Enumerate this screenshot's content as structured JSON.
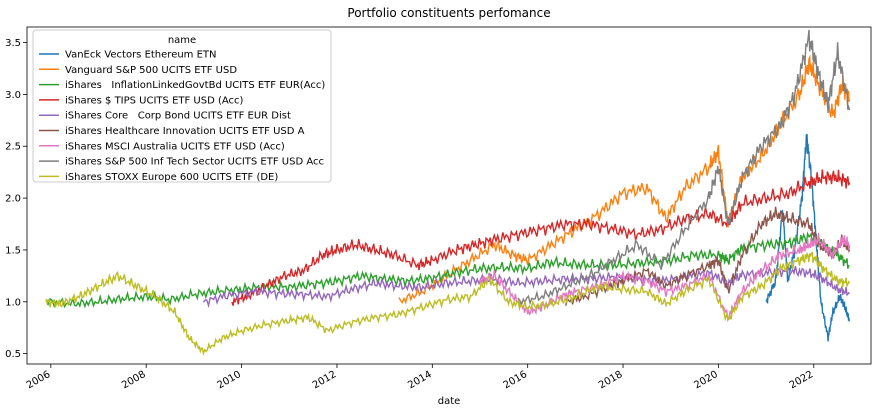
{
  "chart_data": {
    "type": "line",
    "title": "Portfolio constituents perfomance",
    "xlabel": "date",
    "ylabel": "",
    "xlim": [
      2005.5,
      2023.2
    ],
    "ylim": [
      0.4,
      3.65
    ],
    "x_ticks": [
      2006,
      2008,
      2010,
      2012,
      2014,
      2016,
      2018,
      2020,
      2022
    ],
    "y_ticks": [
      0.5,
      1.0,
      1.5,
      2.0,
      2.5,
      3.0,
      3.5
    ],
    "x_tick_labels": [
      "2006",
      "2008",
      "2010",
      "2012",
      "2014",
      "2016",
      "2018",
      "2020",
      "2022"
    ],
    "y_tick_labels": [
      "0.5",
      "1.0",
      "1.5",
      "2.0",
      "2.5",
      "3.0",
      "3.5"
    ],
    "grid": false,
    "legend": {
      "title": "name",
      "placement": "top-left"
    },
    "series": [
      {
        "name": "VanEck Vectors Ethereum ETN",
        "color": "#1f77b4",
        "points": [
          [
            2021.0,
            1.0
          ],
          [
            2021.2,
            1.2
          ],
          [
            2021.35,
            1.9
          ],
          [
            2021.45,
            1.2
          ],
          [
            2021.6,
            1.5
          ],
          [
            2021.75,
            2.0
          ],
          [
            2021.85,
            2.6
          ],
          [
            2021.95,
            2.2
          ],
          [
            2022.05,
            1.6
          ],
          [
            2022.15,
            1.0
          ],
          [
            2022.3,
            0.65
          ],
          [
            2022.4,
            0.9
          ],
          [
            2022.55,
            1.05
          ],
          [
            2022.65,
            0.95
          ],
          [
            2022.75,
            0.82
          ]
        ]
      },
      {
        "name": "Vanguard S&P 500 UCITS ETF USD",
        "color": "#ff7f0e",
        "points": [
          [
            2013.3,
            1.0
          ],
          [
            2013.8,
            1.1
          ],
          [
            2014.3,
            1.25
          ],
          [
            2014.8,
            1.4
          ],
          [
            2015.3,
            1.55
          ],
          [
            2015.7,
            1.45
          ],
          [
            2016.0,
            1.4
          ],
          [
            2016.5,
            1.55
          ],
          [
            2017.0,
            1.7
          ],
          [
            2017.5,
            1.85
          ],
          [
            2018.0,
            2.05
          ],
          [
            2018.5,
            2.1
          ],
          [
            2018.9,
            1.8
          ],
          [
            2019.3,
            2.1
          ],
          [
            2019.8,
            2.3
          ],
          [
            2020.0,
            2.45
          ],
          [
            2020.2,
            1.75
          ],
          [
            2020.5,
            2.2
          ],
          [
            2020.9,
            2.4
          ],
          [
            2021.3,
            2.7
          ],
          [
            2021.7,
            3.0
          ],
          [
            2021.9,
            3.3
          ],
          [
            2022.1,
            3.1
          ],
          [
            2022.4,
            2.8
          ],
          [
            2022.6,
            3.1
          ],
          [
            2022.75,
            2.95
          ]
        ]
      },
      {
        "name": "iShares   InflationLinkedGovtBd UCITS ETF EUR(Acc)",
        "color": "#2ca02c",
        "points": [
          [
            2005.9,
            1.0
          ],
          [
            2006.5,
            0.98
          ],
          [
            2007.0,
            1.0
          ],
          [
            2007.5,
            1.03
          ],
          [
            2008.0,
            1.05
          ],
          [
            2008.5,
            1.02
          ],
          [
            2009.0,
            1.07
          ],
          [
            2009.5,
            1.1
          ],
          [
            2010.0,
            1.12
          ],
          [
            2010.5,
            1.15
          ],
          [
            2011.0,
            1.14
          ],
          [
            2011.5,
            1.17
          ],
          [
            2012.0,
            1.2
          ],
          [
            2012.5,
            1.25
          ],
          [
            2013.0,
            1.22
          ],
          [
            2013.5,
            1.2
          ],
          [
            2014.0,
            1.23
          ],
          [
            2014.5,
            1.28
          ],
          [
            2015.0,
            1.32
          ],
          [
            2015.5,
            1.33
          ],
          [
            2016.0,
            1.32
          ],
          [
            2016.5,
            1.38
          ],
          [
            2017.0,
            1.36
          ],
          [
            2017.5,
            1.35
          ],
          [
            2018.0,
            1.36
          ],
          [
            2018.5,
            1.38
          ],
          [
            2019.0,
            1.4
          ],
          [
            2019.5,
            1.45
          ],
          [
            2020.0,
            1.45
          ],
          [
            2020.2,
            1.4
          ],
          [
            2020.5,
            1.52
          ],
          [
            2021.0,
            1.55
          ],
          [
            2021.5,
            1.57
          ],
          [
            2021.9,
            1.63
          ],
          [
            2022.2,
            1.55
          ],
          [
            2022.5,
            1.45
          ],
          [
            2022.75,
            1.35
          ]
        ]
      },
      {
        "name": "iShares $ TIPS UCITS ETF USD (Acc)",
        "color": "#d62728",
        "points": [
          [
            2009.8,
            1.0
          ],
          [
            2010.1,
            1.05
          ],
          [
            2010.5,
            1.15
          ],
          [
            2010.9,
            1.25
          ],
          [
            2011.3,
            1.3
          ],
          [
            2011.7,
            1.45
          ],
          [
            2012.0,
            1.5
          ],
          [
            2012.4,
            1.55
          ],
          [
            2012.8,
            1.5
          ],
          [
            2013.2,
            1.45
          ],
          [
            2013.7,
            1.35
          ],
          [
            2014.0,
            1.4
          ],
          [
            2014.5,
            1.5
          ],
          [
            2014.9,
            1.55
          ],
          [
            2015.3,
            1.6
          ],
          [
            2015.8,
            1.65
          ],
          [
            2016.3,
            1.7
          ],
          [
            2016.8,
            1.75
          ],
          [
            2017.3,
            1.75
          ],
          [
            2017.8,
            1.7
          ],
          [
            2018.3,
            1.65
          ],
          [
            2018.8,
            1.7
          ],
          [
            2019.3,
            1.8
          ],
          [
            2019.8,
            1.85
          ],
          [
            2020.2,
            1.75
          ],
          [
            2020.5,
            1.95
          ],
          [
            2021.0,
            2.0
          ],
          [
            2021.5,
            2.05
          ],
          [
            2021.9,
            2.15
          ],
          [
            2022.2,
            2.2
          ],
          [
            2022.5,
            2.2
          ],
          [
            2022.75,
            2.15
          ]
        ]
      },
      {
        "name": "iShares Core   Corp Bond UCITS ETF EUR Dist",
        "color": "#9467bd",
        "points": [
          [
            2009.2,
            1.0
          ],
          [
            2009.7,
            1.06
          ],
          [
            2010.3,
            1.1
          ],
          [
            2010.8,
            1.08
          ],
          [
            2011.3,
            1.07
          ],
          [
            2011.8,
            1.05
          ],
          [
            2012.3,
            1.12
          ],
          [
            2012.8,
            1.18
          ],
          [
            2013.3,
            1.15
          ],
          [
            2013.8,
            1.14
          ],
          [
            2014.3,
            1.18
          ],
          [
            2014.8,
            1.2
          ],
          [
            2015.3,
            1.22
          ],
          [
            2015.8,
            1.18
          ],
          [
            2016.3,
            1.2
          ],
          [
            2016.8,
            1.22
          ],
          [
            2017.3,
            1.22
          ],
          [
            2017.8,
            1.24
          ],
          [
            2018.3,
            1.22
          ],
          [
            2018.8,
            1.2
          ],
          [
            2019.3,
            1.24
          ],
          [
            2019.8,
            1.28
          ],
          [
            2020.2,
            1.18
          ],
          [
            2020.5,
            1.26
          ],
          [
            2021.0,
            1.28
          ],
          [
            2021.5,
            1.3
          ],
          [
            2021.9,
            1.28
          ],
          [
            2022.2,
            1.22
          ],
          [
            2022.5,
            1.12
          ],
          [
            2022.75,
            1.08
          ]
        ]
      },
      {
        "name": "iShares Healthcare Innovation UCITS ETF USD A",
        "color": "#8c564b",
        "points": [
          [
            2016.8,
            1.0
          ],
          [
            2017.2,
            1.05
          ],
          [
            2017.7,
            1.15
          ],
          [
            2018.0,
            1.2
          ],
          [
            2018.5,
            1.3
          ],
          [
            2018.9,
            1.15
          ],
          [
            2019.3,
            1.25
          ],
          [
            2019.8,
            1.35
          ],
          [
            2020.0,
            1.4
          ],
          [
            2020.2,
            1.1
          ],
          [
            2020.5,
            1.45
          ],
          [
            2020.9,
            1.75
          ],
          [
            2021.2,
            1.85
          ],
          [
            2021.5,
            1.8
          ],
          [
            2021.9,
            1.75
          ],
          [
            2022.1,
            1.55
          ],
          [
            2022.4,
            1.45
          ],
          [
            2022.6,
            1.6
          ],
          [
            2022.75,
            1.5
          ]
        ]
      },
      {
        "name": "iShares MSCI Australia UCITS ETF USD (Acc)",
        "color": "#e377c2",
        "points": [
          [
            2015.0,
            1.2
          ],
          [
            2015.3,
            1.25
          ],
          [
            2015.7,
            1.05
          ],
          [
            2016.0,
            0.9
          ],
          [
            2016.3,
            0.95
          ],
          [
            2016.7,
            1.05
          ],
          [
            2017.0,
            1.1
          ],
          [
            2017.5,
            1.15
          ],
          [
            2018.0,
            1.25
          ],
          [
            2018.5,
            1.2
          ],
          [
            2018.9,
            1.1
          ],
          [
            2019.3,
            1.15
          ],
          [
            2019.8,
            1.25
          ],
          [
            2020.2,
            0.85
          ],
          [
            2020.5,
            1.1
          ],
          [
            2020.9,
            1.3
          ],
          [
            2021.3,
            1.45
          ],
          [
            2021.7,
            1.5
          ],
          [
            2021.9,
            1.55
          ],
          [
            2022.1,
            1.6
          ],
          [
            2022.4,
            1.45
          ],
          [
            2022.6,
            1.6
          ],
          [
            2022.75,
            1.55
          ]
        ]
      },
      {
        "name": "iShares S&P 500 Inf Tech Sector UCITS ETF USD Acc",
        "color": "#7f7f7f",
        "points": [
          [
            2015.8,
            1.0
          ],
          [
            2016.3,
            1.05
          ],
          [
            2016.8,
            1.15
          ],
          [
            2017.3,
            1.25
          ],
          [
            2017.8,
            1.4
          ],
          [
            2018.3,
            1.55
          ],
          [
            2018.8,
            1.35
          ],
          [
            2019.3,
            1.7
          ],
          [
            2019.8,
            2.0
          ],
          [
            2020.0,
            2.3
          ],
          [
            2020.2,
            1.75
          ],
          [
            2020.5,
            2.2
          ],
          [
            2020.9,
            2.5
          ],
          [
            2021.3,
            2.7
          ],
          [
            2021.6,
            3.0
          ],
          [
            2021.9,
            3.55
          ],
          [
            2022.1,
            3.2
          ],
          [
            2022.3,
            2.9
          ],
          [
            2022.5,
            3.4
          ],
          [
            2022.75,
            2.85
          ]
        ]
      },
      {
        "name": "iShares STOXX Europe 600 UCITS ETF (DE)",
        "color": "#bcbd22",
        "points": [
          [
            2005.9,
            1.0
          ],
          [
            2006.2,
            0.98
          ],
          [
            2006.6,
            1.05
          ],
          [
            2007.0,
            1.15
          ],
          [
            2007.4,
            1.25
          ],
          [
            2007.8,
            1.15
          ],
          [
            2008.2,
            1.05
          ],
          [
            2008.6,
            0.9
          ],
          [
            2008.9,
            0.65
          ],
          [
            2009.2,
            0.52
          ],
          [
            2009.6,
            0.65
          ],
          [
            2010.0,
            0.72
          ],
          [
            2010.5,
            0.78
          ],
          [
            2011.0,
            0.82
          ],
          [
            2011.4,
            0.85
          ],
          [
            2011.8,
            0.72
          ],
          [
            2012.3,
            0.8
          ],
          [
            2012.8,
            0.85
          ],
          [
            2013.3,
            0.88
          ],
          [
            2013.8,
            0.95
          ],
          [
            2014.3,
            1.02
          ],
          [
            2014.8,
            1.05
          ],
          [
            2015.2,
            1.22
          ],
          [
            2015.6,
            1.0
          ],
          [
            2016.0,
            0.95
          ],
          [
            2016.5,
            0.98
          ],
          [
            2017.0,
            1.05
          ],
          [
            2017.5,
            1.15
          ],
          [
            2018.0,
            1.12
          ],
          [
            2018.5,
            1.1
          ],
          [
            2018.9,
            0.98
          ],
          [
            2019.3,
            1.1
          ],
          [
            2019.8,
            1.22
          ],
          [
            2020.2,
            0.82
          ],
          [
            2020.5,
            1.05
          ],
          [
            2020.9,
            1.15
          ],
          [
            2021.3,
            1.32
          ],
          [
            2021.7,
            1.4
          ],
          [
            2021.95,
            1.45
          ],
          [
            2022.2,
            1.32
          ],
          [
            2022.5,
            1.2
          ],
          [
            2022.75,
            1.18
          ]
        ]
      }
    ]
  }
}
